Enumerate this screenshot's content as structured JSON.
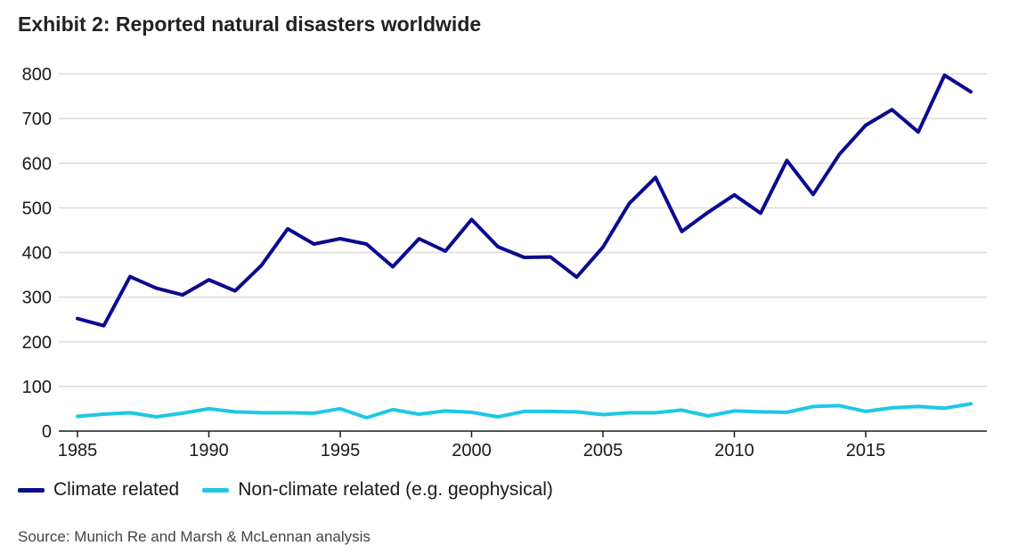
{
  "header": {
    "title": "Exhibit 2: Reported natural disasters worldwide"
  },
  "footer": {
    "source": "Source: Munich Re and Marsh & McLennan analysis"
  },
  "chart_data": {
    "type": "line",
    "title": "Exhibit 2: Reported natural disasters worldwide",
    "xlabel": "",
    "ylabel": "",
    "x": [
      1985,
      1986,
      1987,
      1988,
      1989,
      1990,
      1991,
      1992,
      1993,
      1994,
      1995,
      1996,
      1997,
      1998,
      1999,
      2000,
      2001,
      2002,
      2003,
      2004,
      2005,
      2006,
      2007,
      2008,
      2009,
      2010,
      2011,
      2012,
      2013,
      2014,
      2015,
      2016,
      2017,
      2018,
      2019
    ],
    "xlim": [
      1985,
      2019
    ],
    "xticks": [
      1985,
      1990,
      1995,
      2000,
      2005,
      2010,
      2015
    ],
    "ylim": [
      0,
      800
    ],
    "yticks": [
      0,
      100,
      200,
      300,
      400,
      500,
      600,
      700,
      800
    ],
    "grid": "horizontal",
    "legend_position": "bottom-left",
    "series": [
      {
        "name": "Climate related",
        "color": "#0b0b8f",
        "values": [
          252,
          236,
          346,
          320,
          305,
          339,
          314,
          371,
          453,
          419,
          431,
          419,
          368,
          431,
          403,
          474,
          413,
          389,
          390,
          345,
          412,
          510,
          568,
          447,
          490,
          529,
          488,
          606,
          530,
          620,
          685,
          720,
          670,
          797,
          760
        ]
      },
      {
        "name": "Non-climate related (e.g. geophysical)",
        "color": "#1ec8e6",
        "values": [
          33,
          38,
          41,
          32,
          40,
          50,
          43,
          41,
          41,
          40,
          50,
          30,
          48,
          38,
          45,
          42,
          32,
          44,
          44,
          43,
          37,
          41,
          41,
          47,
          34,
          45,
          43,
          42,
          55,
          57,
          44,
          52,
          55,
          51,
          61
        ]
      }
    ]
  }
}
